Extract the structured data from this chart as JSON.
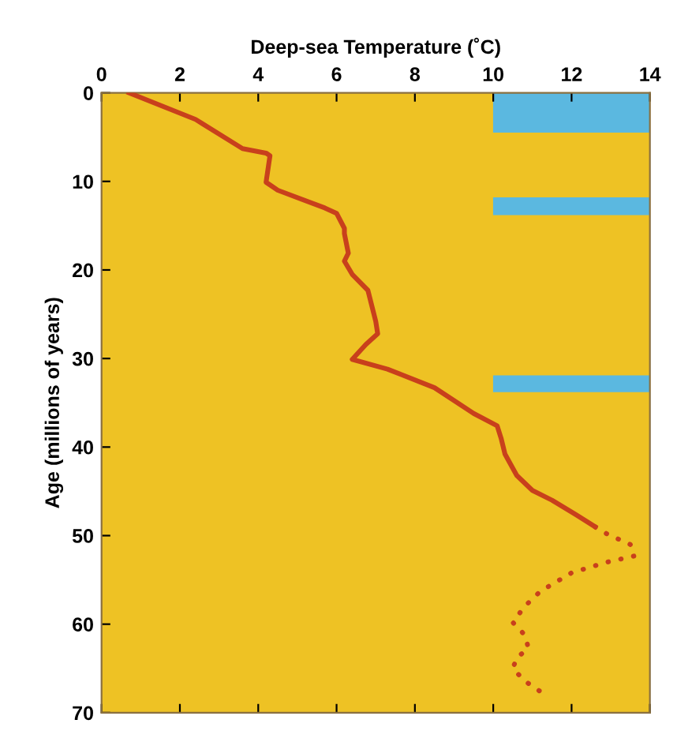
{
  "chart_data": {
    "type": "line",
    "xlabel": "Deep-sea Temperature (˚C)",
    "ylabel": "Age (millions of years)",
    "xlim": [
      0,
      14
    ],
    "xticks": [
      0,
      2,
      4,
      6,
      8,
      10,
      12,
      14
    ],
    "ylim": [
      70,
      0
    ],
    "yticks": [
      0,
      10,
      20,
      30,
      40,
      50,
      60,
      70
    ],
    "grid": false,
    "legend": false,
    "bands": [
      {
        "axis": "y",
        "from": 0,
        "to": 4.5,
        "color": "#5bb8e0"
      },
      {
        "axis": "y",
        "from": 11.8,
        "to": 13.8,
        "color": "#5bb8e0"
      },
      {
        "axis": "y",
        "from": 31.9,
        "to": 33.8,
        "color": "#5bb8e0"
      }
    ],
    "series": [
      {
        "color": "#c8401c",
        "line_style": "solid",
        "x": [
          0.7,
          2.4,
          3.6,
          4.2,
          4.3,
          4.2,
          4.5,
          5.7,
          6.0,
          6.2,
          6.2,
          6.3,
          6.2,
          6.4,
          6.8,
          7.0,
          7.05,
          6.75,
          6.4,
          7.3,
          8.5,
          9.5,
          10.1,
          10.2,
          10.3,
          10.6,
          11.0,
          11.5,
          12.1,
          12.6
        ],
        "values": [
          0,
          3,
          6.3,
          6.8,
          7.1,
          10.1,
          11,
          13,
          13.6,
          15.3,
          15.9,
          18.1,
          19,
          20.5,
          22.3,
          25.8,
          27.2,
          28.4,
          30.1,
          31.2,
          33.3,
          36.2,
          37.6,
          39,
          40.8,
          43.2,
          44.9,
          46,
          47.6,
          49
        ]
      },
      {
        "color": "#c8401c",
        "line_style": "dotted",
        "x": [
          12.6,
          12.9,
          13.5,
          13.6,
          12.9,
          12.0,
          11.2,
          10.8,
          10.5,
          10.8,
          10.9,
          10.6,
          10.5,
          10.8,
          11.2
        ],
        "values": [
          49,
          49.8,
          51,
          52.3,
          53,
          54.2,
          56.3,
          58,
          59.8,
          61.2,
          62.7,
          63.8,
          65,
          66.4,
          67.6
        ]
      }
    ]
  }
}
